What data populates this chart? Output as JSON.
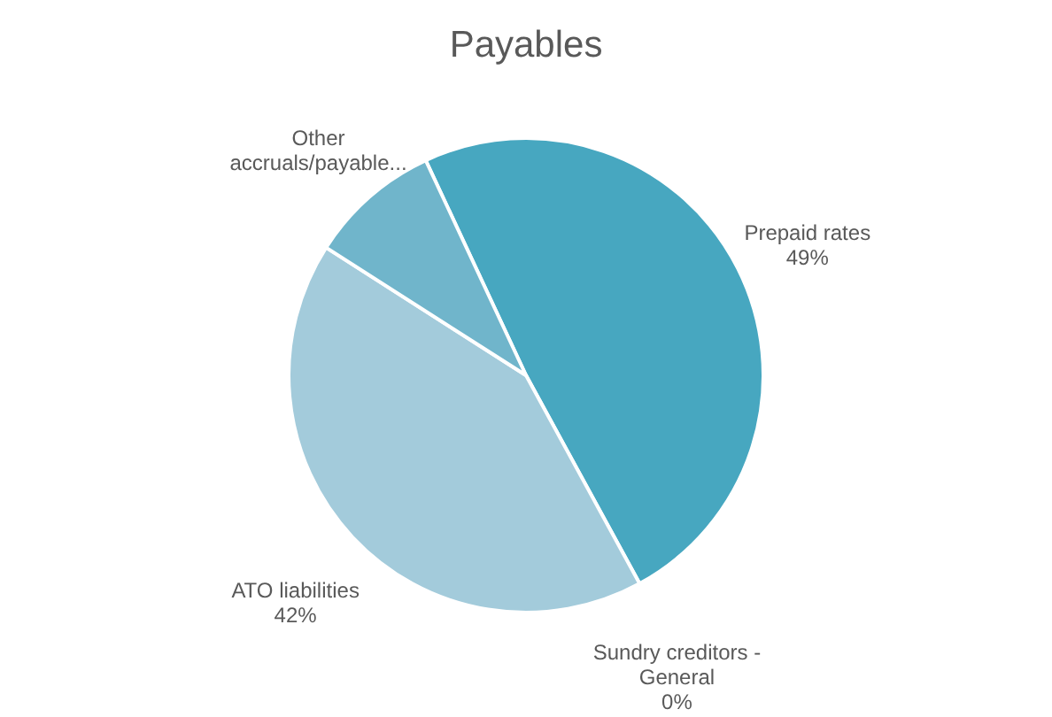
{
  "chart_data": {
    "type": "pie",
    "title": "Payables",
    "categories": [
      "Prepaid rates",
      "Sundry creditors -\nGeneral",
      "ATO liabilities",
      "Other\naccruals/payable..."
    ],
    "values": [
      49,
      0,
      42,
      9
    ],
    "colors": [
      "#47a7c0",
      "#3a8fa8",
      "#a3cbdb",
      "#70b5cb"
    ],
    "value_labels": [
      "49%",
      "0%",
      "42%",
      null
    ],
    "legend": false
  }
}
